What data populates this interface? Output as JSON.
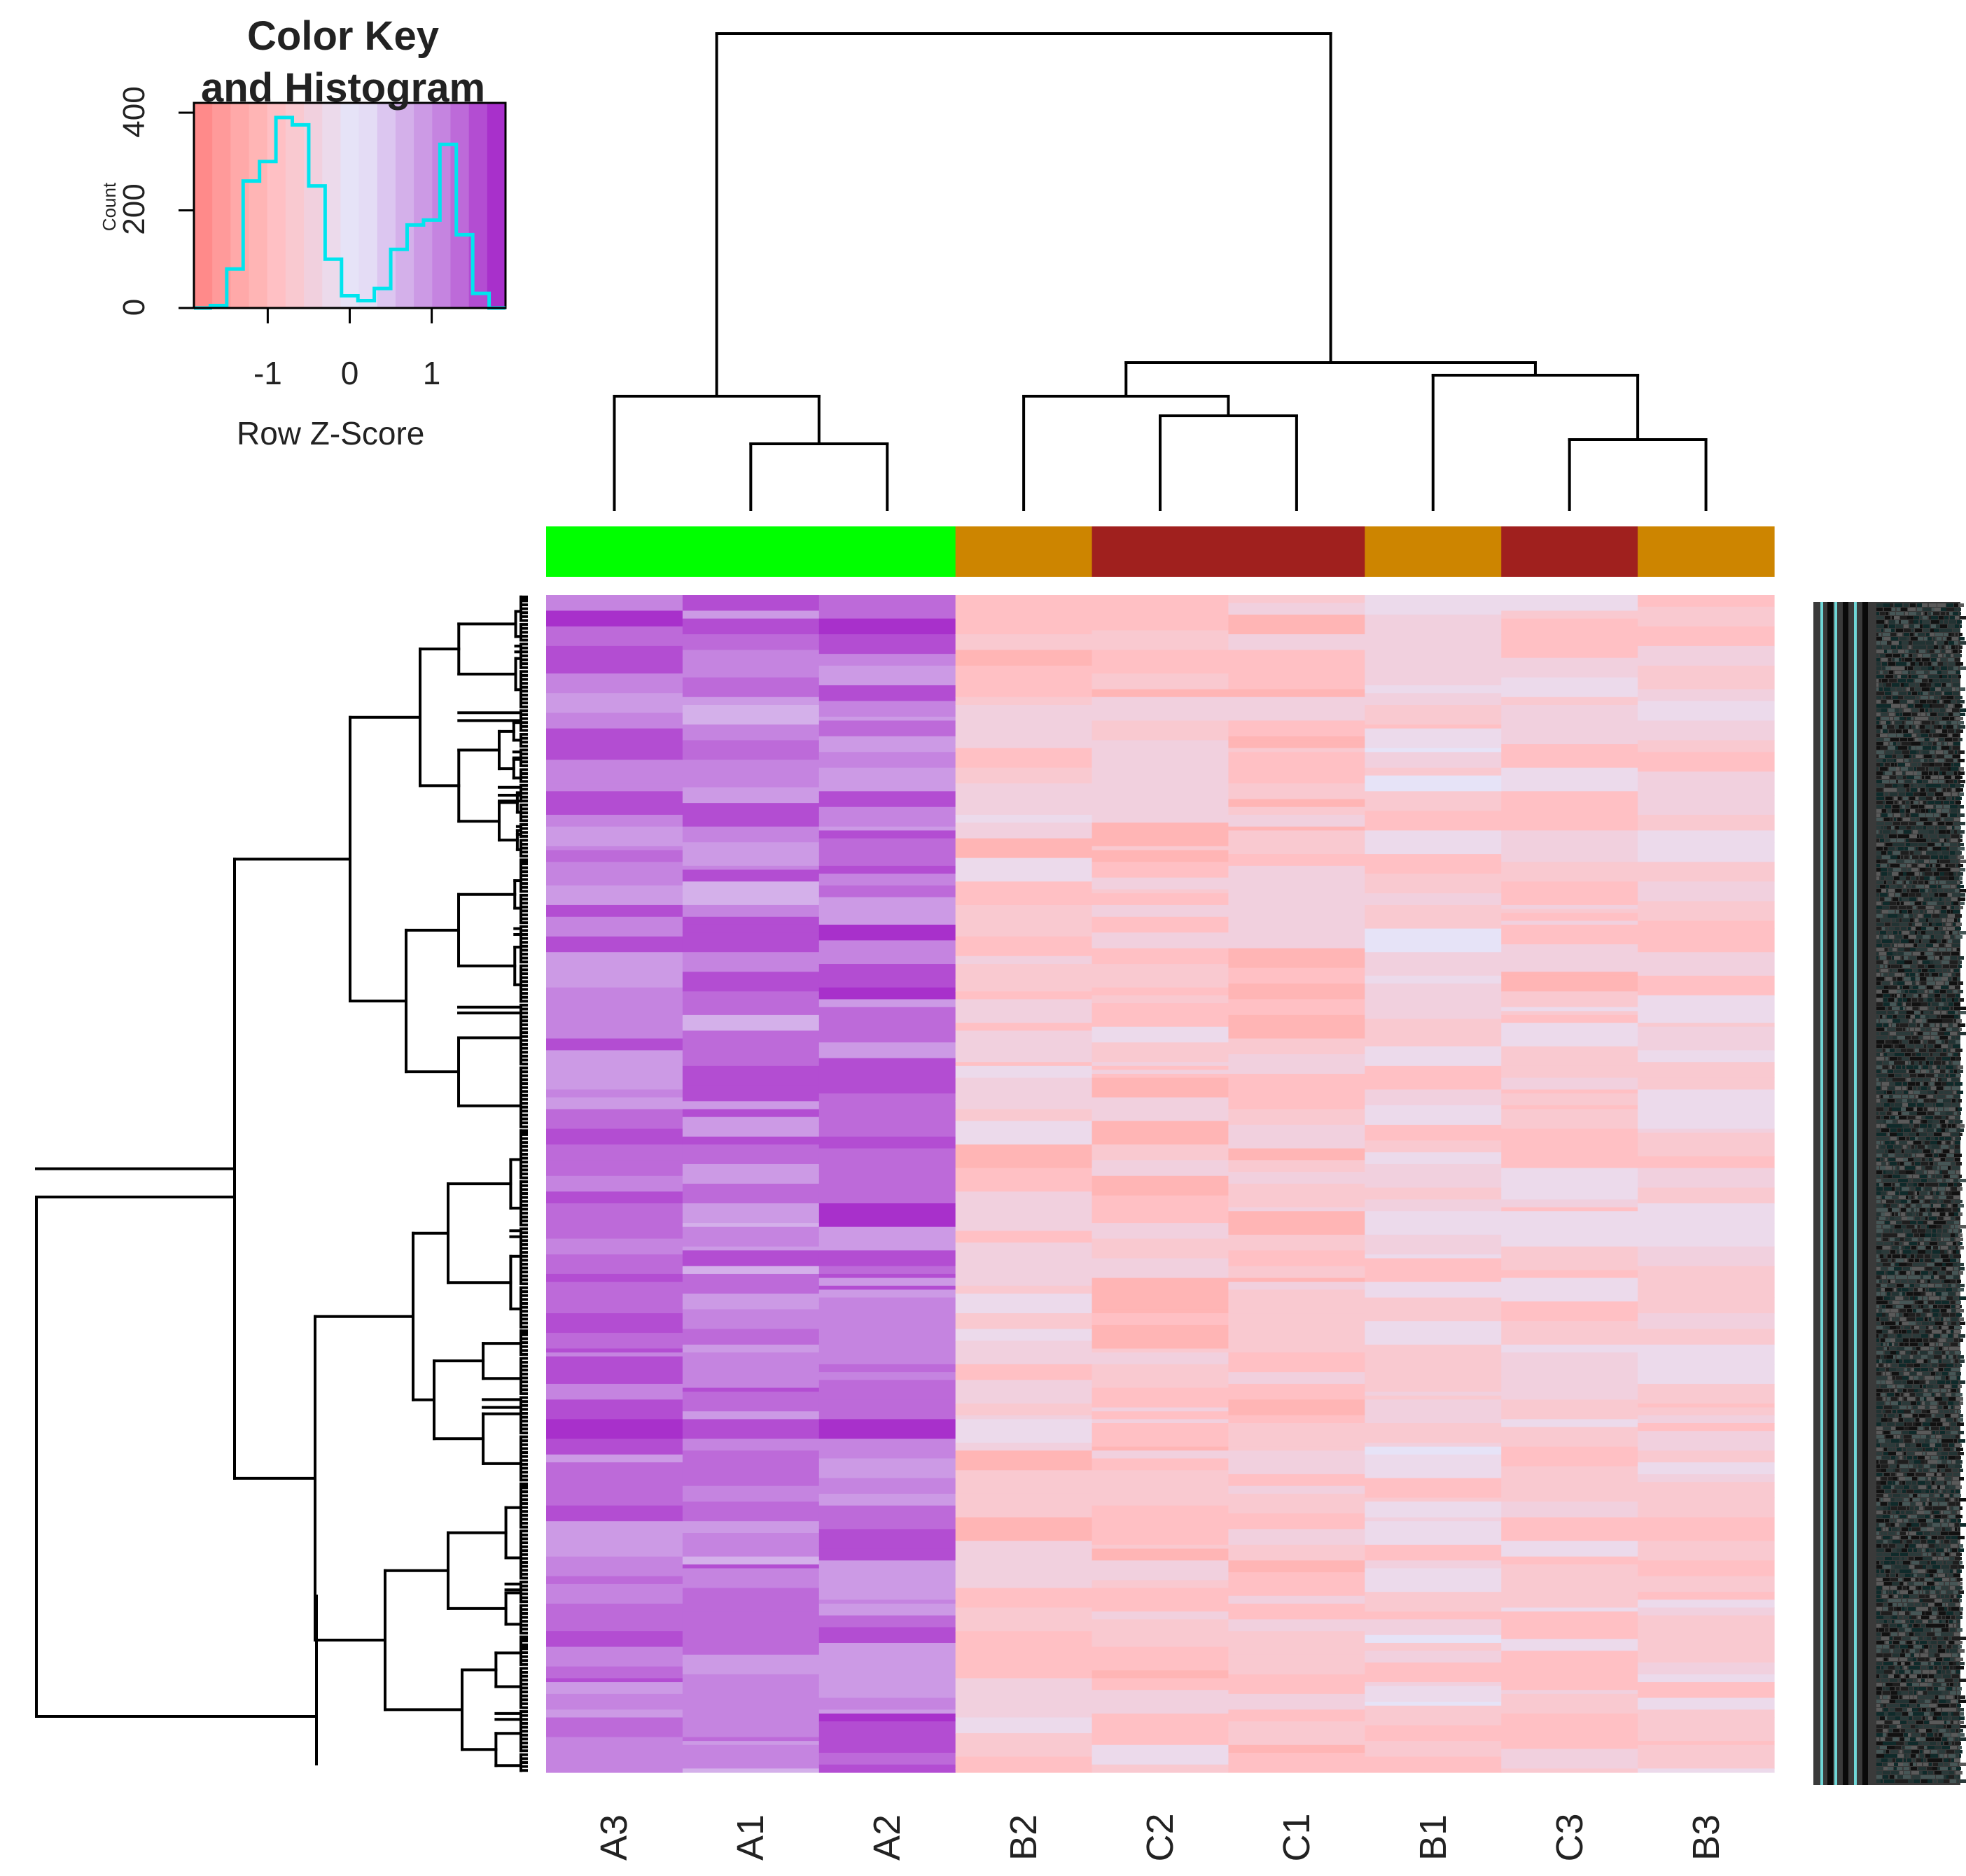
{
  "chart_data": {
    "type": "heatmap",
    "title": "",
    "color_key": {
      "title_line1": "Color Key",
      "title_line2": "and Histogram",
      "xlabel": "Row Z-Score",
      "ylabel": "Count",
      "xticks": [
        -1,
        0,
        1
      ],
      "yticks": [
        0,
        200,
        400
      ],
      "xlim": [
        -1.9,
        1.9
      ],
      "ylim": [
        0,
        420
      ],
      "colors_low_to_high": [
        "#ff8a8a",
        "#ff9a9a",
        "#ffa9a9",
        "#ffb5b5",
        "#ffc0c4",
        "#f9c9d0",
        "#f1d0de",
        "#ecdaeb",
        "#e6e3f7",
        "#e4dcf5",
        "#dcc6f0",
        "#d4b0ea",
        "#cc9ae5",
        "#c584e0",
        "#bd6ad9",
        "#b34dd2",
        "#a830cb"
      ],
      "histogram": {
        "bin_edges": [
          -1.9,
          -1.7,
          -1.5,
          -1.3,
          -1.1,
          -0.9,
          -0.7,
          -0.5,
          -0.3,
          -0.1,
          0.1,
          0.3,
          0.5,
          0.7,
          0.9,
          1.1,
          1.3,
          1.5,
          1.7,
          1.9
        ],
        "counts": [
          0,
          5,
          80,
          260,
          300,
          390,
          375,
          250,
          100,
          25,
          15,
          40,
          120,
          170,
          180,
          335,
          150,
          30,
          0
        ]
      },
      "histogram_color": "#00e5ee"
    },
    "columns": [
      "A3",
      "A1",
      "A2",
      "B2",
      "C2",
      "C1",
      "B1",
      "C3",
      "B3"
    ],
    "column_groups": [
      "A",
      "A",
      "A",
      "B",
      "C",
      "C",
      "B",
      "C",
      "B"
    ],
    "group_colors": {
      "A": "#00ff00",
      "B": "#cd8500",
      "C": "#a0201e"
    },
    "n_rows": 300,
    "column_mean_zscore": [
      1.25,
      1.15,
      1.3,
      -0.65,
      -0.7,
      -0.75,
      -0.45,
      -0.6,
      -0.55
    ],
    "column_dendrogram": "((A3,(A1,A2)),((B2,(C2,C1)),(B1,(C3,B3))))",
    "row_labels_legible": false
  }
}
